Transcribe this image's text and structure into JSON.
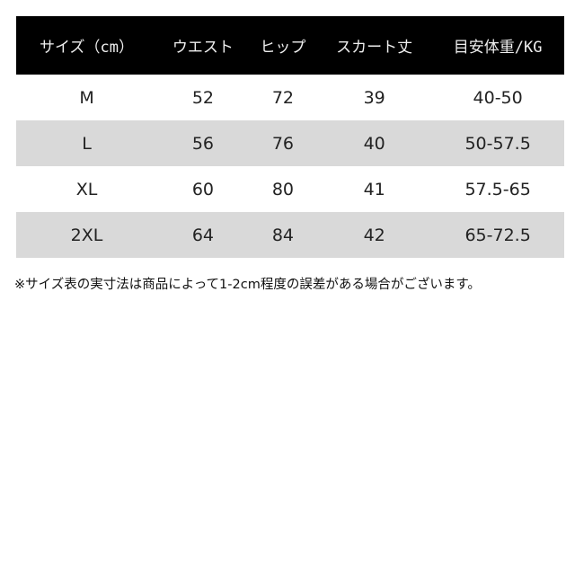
{
  "headers": [
    "サイズ（cm）",
    "ウエスト",
    "ヒップ",
    "スカート丈",
    "目安体重/KG"
  ],
  "rows": [
    [
      "M",
      "52",
      "72",
      "39",
      "40-50"
    ],
    [
      "L",
      "56",
      "76",
      "40",
      "50-57.5"
    ],
    [
      "XL",
      "60",
      "80",
      "41",
      "57.5-65"
    ],
    [
      "2XL",
      "64",
      "84",
      "42",
      "65-72.5"
    ]
  ],
  "note": "※サイズ表の実寸法は商品によって1-2cm程度の誤差がある場合がございます。",
  "colors": {
    "header_bg": "#000000",
    "stripe": "#d9d9d9"
  }
}
